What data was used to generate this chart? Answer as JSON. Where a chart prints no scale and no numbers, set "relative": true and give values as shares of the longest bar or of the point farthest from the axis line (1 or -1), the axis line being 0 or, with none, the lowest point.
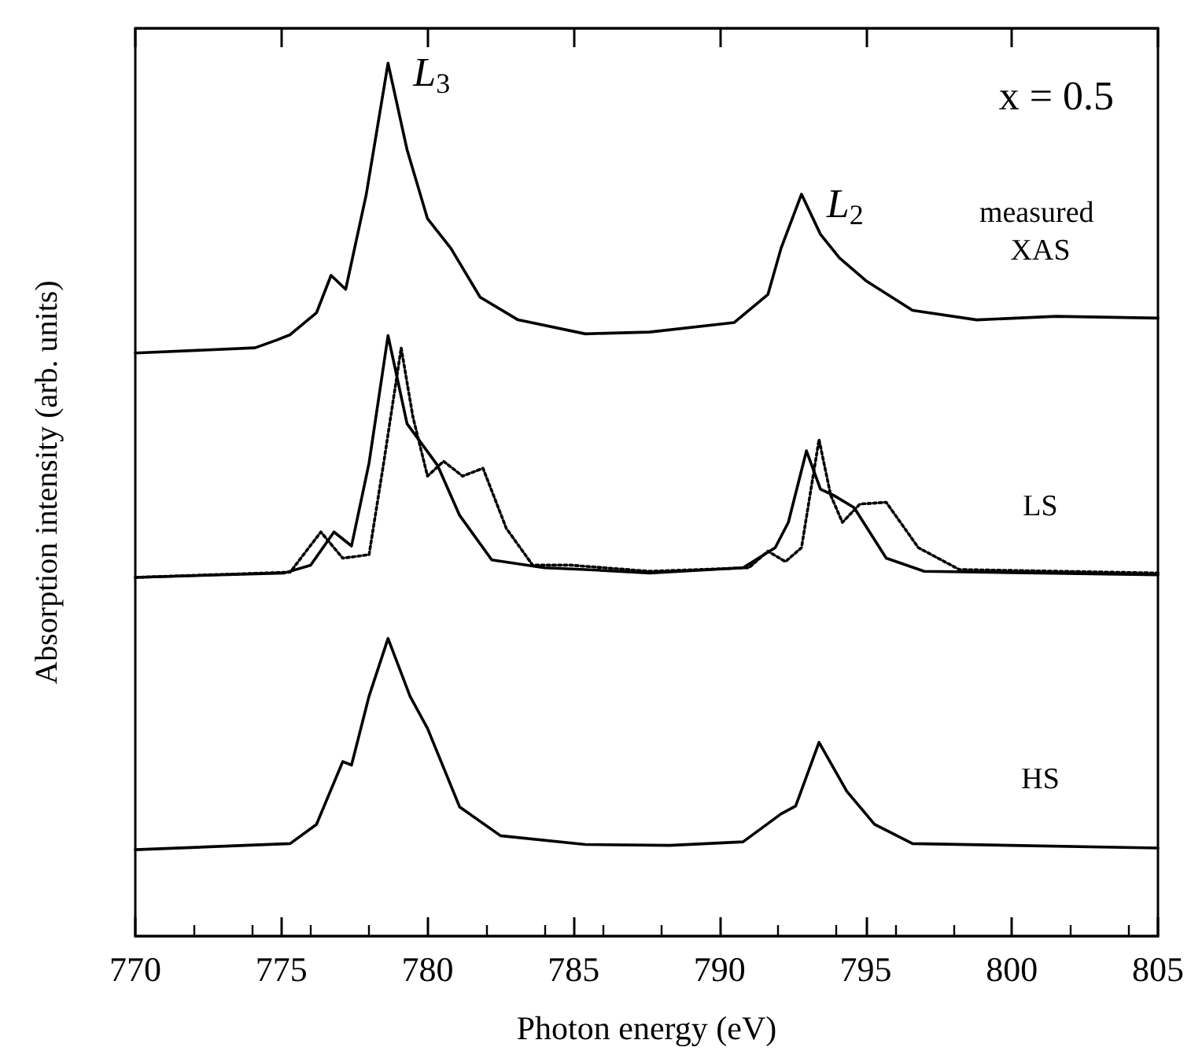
{
  "chart_data": {
    "type": "line",
    "relative": true,
    "xlabel": "Photon energy (eV)",
    "ylabel": "Absorption intensity (arb. units)",
    "xlim": [
      770,
      805
    ],
    "xticks": [
      770,
      775,
      780,
      785,
      790,
      795,
      800,
      805
    ],
    "grid": false,
    "legend": false,
    "marker": "none",
    "line_style": "solid",
    "annotations": [
      {
        "text": "L$_{3}$",
        "x": 778.65,
        "y": 1.0
      },
      {
        "text": "L$_{2}$",
        "x": 792.8,
        "y": 0.85
      },
      "x = 0.5"
    ],
    "series": [
      {
        "name": "measured XAS",
        "color": "#000000",
        "x": [
          770,
          774.1,
          774.85,
          775.3,
          776.2,
          776.7,
          777.2,
          777.9,
          778.65,
          779.3,
          780.0,
          780.8,
          781.8,
          783.1,
          785.4,
          787.6,
          790.5,
          791.65,
          792.1,
          792.8,
          793.45,
          794.1,
          795.0,
          796.6,
          798.8,
          801.5,
          805
        ],
        "values": [
          0.668,
          0.674,
          0.683,
          0.689,
          0.714,
          0.757,
          0.741,
          0.849,
          1.0,
          0.901,
          0.822,
          0.788,
          0.732,
          0.706,
          0.69,
          0.692,
          0.703,
          0.735,
          0.788,
          0.85,
          0.804,
          0.777,
          0.751,
          0.717,
          0.706,
          0.71,
          0.708
        ]
      },
      {
        "name": "LS",
        "color": "#000000",
        "x": [
          770,
          775.1,
          776.0,
          776.8,
          777.4,
          778.0,
          778.65,
          779.3,
          780.35,
          781.1,
          782.2,
          784.0,
          785.4,
          787.6,
          790.8,
          791.9,
          792.35,
          792.97,
          793.45,
          793.9,
          794.6,
          795.7,
          797.0,
          805
        ],
        "values": [
          0.411,
          0.416,
          0.425,
          0.463,
          0.447,
          0.542,
          0.688,
          0.587,
          0.539,
          0.482,
          0.431,
          0.422,
          0.42,
          0.416,
          0.422,
          0.445,
          0.474,
          0.556,
          0.512,
          0.505,
          0.491,
          0.433,
          0.418,
          0.414
        ]
      },
      {
        "color": "#000000",
        "line_style": "dotted",
        "x": [
          770,
          775.3,
          776.35,
          777.1,
          778.0,
          778.5,
          779.1,
          779.5,
          780.0,
          780.55,
          781.2,
          781.9,
          782.7,
          783.6,
          784.9,
          787.6,
          791.0,
          791.65,
          792.25,
          792.8,
          793.4,
          793.8,
          794.2,
          794.8,
          795.7,
          796.8,
          798.2,
          805
        ],
        "values": [
          0.411,
          0.417,
          0.463,
          0.433,
          0.437,
          0.542,
          0.674,
          0.595,
          0.527,
          0.544,
          0.527,
          0.536,
          0.467,
          0.425,
          0.425,
          0.418,
          0.422,
          0.441,
          0.429,
          0.445,
          0.569,
          0.505,
          0.474,
          0.495,
          0.497,
          0.445,
          0.42,
          0.416
        ]
      },
      {
        "name": "HS",
        "color": "#000000",
        "x": [
          770,
          775.3,
          776.2,
          777.1,
          777.4,
          778.0,
          778.65,
          779.4,
          780.0,
          781.1,
          782.5,
          785.4,
          788.3,
          790.8,
          792.1,
          792.6,
          793.4,
          794.35,
          795.3,
          796.6,
          805
        ],
        "values": [
          0.099,
          0.106,
          0.128,
          0.2,
          0.196,
          0.275,
          0.341,
          0.275,
          0.238,
          0.148,
          0.115,
          0.105,
          0.104,
          0.108,
          0.14,
          0.149,
          0.222,
          0.166,
          0.128,
          0.106,
          0.101
        ]
      }
    ]
  }
}
